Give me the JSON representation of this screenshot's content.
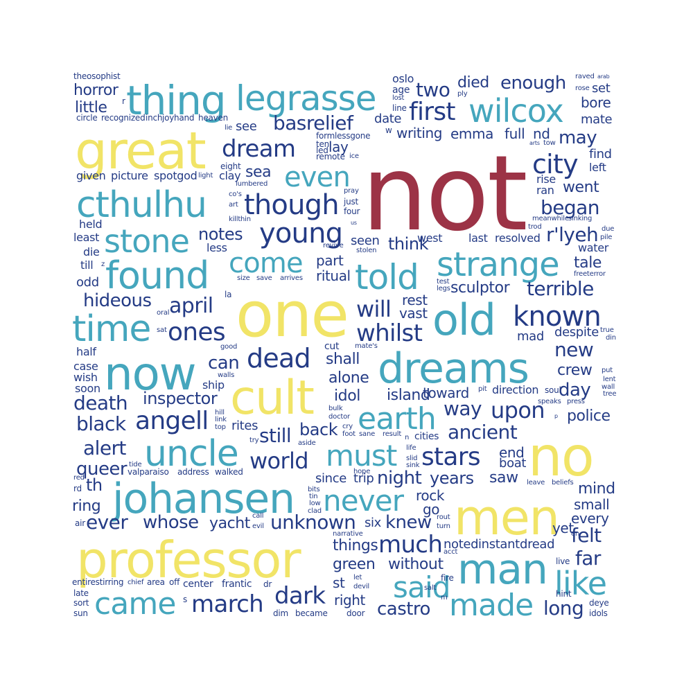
{
  "palette": {
    "red": "#9c3346",
    "yellow": "#f1e467",
    "teal": "#45a6bd",
    "navy": "#243b85"
  },
  "words": [
    {
      "text": "not",
      "color": "red"
    },
    {
      "text": "one",
      "color": "yellow"
    },
    {
      "text": "great",
      "color": "yellow"
    },
    {
      "text": "professor",
      "color": "yellow"
    },
    {
      "text": "men",
      "color": "yellow"
    },
    {
      "text": "no",
      "color": "yellow"
    },
    {
      "text": "cult",
      "color": "yellow"
    },
    {
      "text": "now",
      "color": "teal"
    },
    {
      "text": "old",
      "color": "teal"
    },
    {
      "text": "johansen",
      "color": "teal"
    },
    {
      "text": "dreams",
      "color": "teal"
    },
    {
      "text": "man",
      "color": "teal"
    },
    {
      "text": "thing",
      "color": "teal"
    },
    {
      "text": "legrasse",
      "color": "teal"
    },
    {
      "text": "cthulhu",
      "color": "teal"
    },
    {
      "text": "found",
      "color": "teal"
    },
    {
      "text": "uncle",
      "color": "teal"
    },
    {
      "text": "strange",
      "color": "teal"
    },
    {
      "text": "told",
      "color": "teal"
    },
    {
      "text": "time",
      "color": "teal"
    },
    {
      "text": "wilcox",
      "color": "teal"
    },
    {
      "text": "stone",
      "color": "teal"
    },
    {
      "text": "came",
      "color": "teal"
    },
    {
      "text": "made",
      "color": "teal"
    },
    {
      "text": "earth",
      "color": "teal"
    },
    {
      "text": "must",
      "color": "teal"
    },
    {
      "text": "never",
      "color": "teal"
    },
    {
      "text": "said",
      "color": "teal"
    },
    {
      "text": "like",
      "color": "teal"
    },
    {
      "text": "come",
      "color": "teal"
    },
    {
      "text": "even",
      "color": "teal"
    },
    {
      "text": "known",
      "color": "navy"
    },
    {
      "text": "young",
      "color": "navy"
    },
    {
      "text": "though",
      "color": "navy"
    },
    {
      "text": "dream",
      "color": "navy"
    },
    {
      "text": "city",
      "color": "navy"
    },
    {
      "text": "first",
      "color": "navy"
    },
    {
      "text": "ones",
      "color": "navy"
    },
    {
      "text": "dead",
      "color": "navy"
    },
    {
      "text": "angell",
      "color": "navy"
    },
    {
      "text": "stars",
      "color": "navy"
    },
    {
      "text": "much",
      "color": "navy"
    },
    {
      "text": "whilst",
      "color": "navy"
    },
    {
      "text": "april",
      "color": "navy"
    },
    {
      "text": "will",
      "color": "navy"
    },
    {
      "text": "world",
      "color": "navy"
    },
    {
      "text": "march",
      "color": "navy"
    },
    {
      "text": "dark",
      "color": "navy"
    },
    {
      "text": "upon",
      "color": "navy"
    },
    {
      "text": "alert",
      "color": "navy"
    },
    {
      "text": "black",
      "color": "navy"
    },
    {
      "text": "death",
      "color": "navy"
    },
    {
      "text": "basrelief",
      "color": "navy"
    },
    {
      "text": "two",
      "color": "navy"
    },
    {
      "text": "terrible",
      "color": "navy"
    },
    {
      "text": "began",
      "color": "navy"
    },
    {
      "text": "far",
      "color": "navy"
    },
    {
      "text": "felt",
      "color": "navy"
    },
    {
      "text": "long",
      "color": "navy"
    },
    {
      "text": "r'lyeh",
      "color": "navy"
    },
    {
      "text": "day",
      "color": "navy"
    },
    {
      "text": "new",
      "color": "navy"
    },
    {
      "text": "ancient",
      "color": "navy"
    },
    {
      "text": "hideous",
      "color": "navy"
    },
    {
      "text": "inspector",
      "color": "navy"
    },
    {
      "text": "whose",
      "color": "navy"
    },
    {
      "text": "unknown",
      "color": "navy"
    },
    {
      "text": "ever",
      "color": "navy"
    },
    {
      "text": "queer",
      "color": "navy"
    },
    {
      "text": "ring",
      "color": "navy"
    },
    {
      "text": "th",
      "color": "navy"
    },
    {
      "text": "knew",
      "color": "navy"
    },
    {
      "text": "castro",
      "color": "navy"
    },
    {
      "text": "way",
      "color": "navy"
    },
    {
      "text": "police",
      "color": "navy"
    },
    {
      "text": "tale",
      "color": "navy"
    },
    {
      "text": "may",
      "color": "navy"
    },
    {
      "text": "went",
      "color": "navy"
    },
    {
      "text": "horror",
      "color": "navy"
    },
    {
      "text": "little",
      "color": "navy"
    },
    {
      "text": "died",
      "color": "navy"
    },
    {
      "text": "enough",
      "color": "navy"
    },
    {
      "text": "sculptor",
      "color": "navy"
    },
    {
      "text": "island",
      "color": "navy"
    },
    {
      "text": "yacht",
      "color": "navy"
    },
    {
      "text": "without",
      "color": "navy"
    },
    {
      "text": "green",
      "color": "navy"
    },
    {
      "text": "things",
      "color": "navy"
    },
    {
      "text": "shall",
      "color": "navy"
    },
    {
      "text": "alone",
      "color": "navy"
    },
    {
      "text": "still",
      "color": "navy"
    },
    {
      "text": "back",
      "color": "navy"
    },
    {
      "text": "can",
      "color": "navy"
    },
    {
      "text": "notes",
      "color": "navy"
    },
    {
      "text": "sea",
      "color": "navy"
    },
    {
      "text": "think",
      "color": "navy"
    },
    {
      "text": "seen",
      "color": "navy"
    },
    {
      "text": "part",
      "color": "navy"
    },
    {
      "text": "ritual",
      "color": "navy"
    },
    {
      "text": "idol",
      "color": "navy"
    },
    {
      "text": "night",
      "color": "navy"
    },
    {
      "text": "years",
      "color": "navy"
    },
    {
      "text": "saw",
      "color": "navy"
    },
    {
      "text": "rock",
      "color": "navy"
    },
    {
      "text": "go",
      "color": "navy"
    },
    {
      "text": "mind",
      "color": "navy"
    },
    {
      "text": "small",
      "color": "navy"
    },
    {
      "text": "every",
      "color": "navy"
    },
    {
      "text": "crew",
      "color": "navy"
    },
    {
      "text": "find",
      "color": "navy"
    },
    {
      "text": "left",
      "color": "navy"
    },
    {
      "text": "mad",
      "color": "navy"
    },
    {
      "text": "despite",
      "color": "navy"
    },
    {
      "text": "writing",
      "color": "navy"
    },
    {
      "text": "emma",
      "color": "navy"
    },
    {
      "text": "full",
      "color": "navy"
    },
    {
      "text": "nd",
      "color": "navy"
    },
    {
      "text": "set",
      "color": "navy"
    },
    {
      "text": "bore",
      "color": "navy"
    },
    {
      "text": "mate",
      "color": "navy"
    },
    {
      "text": "date",
      "color": "navy"
    },
    {
      "text": "see",
      "color": "navy"
    },
    {
      "text": "lay",
      "color": "navy"
    },
    {
      "text": "rest",
      "color": "navy"
    },
    {
      "text": "vast",
      "color": "navy"
    },
    {
      "text": "toward",
      "color": "navy"
    },
    {
      "text": "end",
      "color": "navy"
    },
    {
      "text": "boat",
      "color": "navy"
    },
    {
      "text": "since",
      "color": "navy"
    },
    {
      "text": "trip",
      "color": "navy"
    },
    {
      "text": "st",
      "color": "navy"
    },
    {
      "text": "right",
      "color": "navy"
    },
    {
      "text": "six",
      "color": "navy"
    },
    {
      "text": "noted",
      "color": "navy"
    },
    {
      "text": "instant",
      "color": "navy"
    },
    {
      "text": "dread",
      "color": "navy"
    },
    {
      "text": "yet",
      "color": "navy"
    },
    {
      "text": "water",
      "color": "navy"
    },
    {
      "text": "west",
      "color": "navy"
    },
    {
      "text": "last",
      "color": "navy"
    },
    {
      "text": "resolved",
      "color": "navy"
    },
    {
      "text": "direction",
      "color": "navy"
    },
    {
      "text": "soul",
      "color": "navy"
    },
    {
      "text": "cities",
      "color": "navy"
    },
    {
      "text": "held",
      "color": "navy"
    },
    {
      "text": "least",
      "color": "navy"
    },
    {
      "text": "die",
      "color": "navy"
    },
    {
      "text": "till",
      "color": "navy"
    },
    {
      "text": "odd",
      "color": "navy"
    },
    {
      "text": "half",
      "color": "navy"
    },
    {
      "text": "case",
      "color": "navy"
    },
    {
      "text": "wish",
      "color": "navy"
    },
    {
      "text": "soon",
      "color": "navy"
    },
    {
      "text": "ship",
      "color": "navy"
    },
    {
      "text": "rites",
      "color": "navy"
    },
    {
      "text": "less",
      "color": "navy"
    },
    {
      "text": "clay",
      "color": "navy"
    },
    {
      "text": "given",
      "color": "navy"
    },
    {
      "text": "picture",
      "color": "navy"
    },
    {
      "text": "spotgod",
      "color": "navy"
    },
    {
      "text": "cut",
      "color": "navy"
    },
    {
      "text": "rise",
      "color": "navy"
    },
    {
      "text": "ran",
      "color": "navy"
    },
    {
      "text": "oslo",
      "color": "navy"
    },
    {
      "text": "age",
      "color": "navy"
    },
    {
      "text": "lost",
      "color": "navy"
    },
    {
      "text": "line",
      "color": "navy"
    },
    {
      "text": "theosophist",
      "color": "navy"
    },
    {
      "text": "circle",
      "color": "navy"
    },
    {
      "text": "recognized",
      "color": "navy"
    },
    {
      "text": "inch",
      "color": "navy"
    },
    {
      "text": "joyhand",
      "color": "navy"
    },
    {
      "text": "heaven",
      "color": "navy"
    },
    {
      "text": "formlessgone",
      "color": "navy"
    },
    {
      "text": "ten",
      "color": "navy"
    },
    {
      "text": "led",
      "color": "navy"
    },
    {
      "text": "remote",
      "color": "navy"
    },
    {
      "text": "ice",
      "color": "navy"
    },
    {
      "text": "eight",
      "color": "navy"
    },
    {
      "text": "light",
      "color": "navy"
    },
    {
      "text": "lumbered",
      "color": "navy"
    },
    {
      "text": "pray",
      "color": "navy"
    },
    {
      "text": "just",
      "color": "navy"
    },
    {
      "text": "four",
      "color": "navy"
    },
    {
      "text": "art",
      "color": "navy"
    },
    {
      "text": "co's",
      "color": "navy"
    },
    {
      "text": "killthin",
      "color": "navy"
    },
    {
      "text": "us",
      "color": "navy"
    },
    {
      "text": "revive",
      "color": "navy"
    },
    {
      "text": "stolen",
      "color": "navy"
    },
    {
      "text": "size",
      "color": "navy"
    },
    {
      "text": "save",
      "color": "navy"
    },
    {
      "text": "arrives",
      "color": "navy"
    },
    {
      "text": "la",
      "color": "navy"
    },
    {
      "text": "oral",
      "color": "navy"
    },
    {
      "text": "sat",
      "color": "navy"
    },
    {
      "text": "good",
      "color": "navy"
    },
    {
      "text": "walls",
      "color": "navy"
    },
    {
      "text": "hill",
      "color": "navy"
    },
    {
      "text": "link",
      "color": "navy"
    },
    {
      "text": "top",
      "color": "navy"
    },
    {
      "text": "try",
      "color": "navy"
    },
    {
      "text": "mate's",
      "color": "navy"
    },
    {
      "text": "bulk",
      "color": "navy"
    },
    {
      "text": "doctor",
      "color": "navy"
    },
    {
      "text": "cry",
      "color": "navy"
    },
    {
      "text": "foot",
      "color": "navy"
    },
    {
      "text": "sane",
      "color": "navy"
    },
    {
      "text": "result",
      "color": "navy"
    },
    {
      "text": "aside",
      "color": "navy"
    },
    {
      "text": "life",
      "color": "navy"
    },
    {
      "text": "slid",
      "color": "navy"
    },
    {
      "text": "sink",
      "color": "navy"
    },
    {
      "text": "tide",
      "color": "navy"
    },
    {
      "text": "valparaiso",
      "color": "navy"
    },
    {
      "text": "address",
      "color": "navy"
    },
    {
      "text": "walked",
      "color": "navy"
    },
    {
      "text": "hope",
      "color": "navy"
    },
    {
      "text": "bits",
      "color": "navy"
    },
    {
      "text": "tin",
      "color": "navy"
    },
    {
      "text": "low",
      "color": "navy"
    },
    {
      "text": "clad",
      "color": "navy"
    },
    {
      "text": "red",
      "color": "navy"
    },
    {
      "text": "rd",
      "color": "navy"
    },
    {
      "text": "air",
      "color": "navy"
    },
    {
      "text": "call",
      "color": "navy"
    },
    {
      "text": "evil",
      "color": "navy"
    },
    {
      "text": "narrative",
      "color": "navy"
    },
    {
      "text": "rout",
      "color": "navy"
    },
    {
      "text": "turn",
      "color": "navy"
    },
    {
      "text": "acct",
      "color": "navy"
    },
    {
      "text": "en",
      "color": "navy"
    },
    {
      "text": "live",
      "color": "navy"
    },
    {
      "text": "entirestirring",
      "color": "navy"
    },
    {
      "text": "chief",
      "color": "navy"
    },
    {
      "text": "area",
      "color": "navy"
    },
    {
      "text": "off",
      "color": "navy"
    },
    {
      "text": "center",
      "color": "navy"
    },
    {
      "text": "frantic",
      "color": "navy"
    },
    {
      "text": "dr",
      "color": "navy"
    },
    {
      "text": "late",
      "color": "navy"
    },
    {
      "text": "sort",
      "color": "navy"
    },
    {
      "text": "sun",
      "color": "navy"
    },
    {
      "text": "s",
      "color": "navy"
    },
    {
      "text": "dim",
      "color": "navy"
    },
    {
      "text": "became",
      "color": "navy"
    },
    {
      "text": "door",
      "color": "navy"
    },
    {
      "text": "let",
      "color": "navy"
    },
    {
      "text": "devil",
      "color": "navy"
    },
    {
      "text": "fire",
      "color": "navy"
    },
    {
      "text": "salt",
      "color": "navy"
    },
    {
      "text": "m",
      "color": "navy"
    },
    {
      "text": "hint",
      "color": "navy"
    },
    {
      "text": "deye",
      "color": "navy"
    },
    {
      "text": "idols",
      "color": "navy"
    },
    {
      "text": "leave",
      "color": "navy"
    },
    {
      "text": "beliefs",
      "color": "navy"
    },
    {
      "text": "speaks",
      "color": "navy"
    },
    {
      "text": "press",
      "color": "navy"
    },
    {
      "text": "put",
      "color": "navy"
    },
    {
      "text": "lent",
      "color": "navy"
    },
    {
      "text": "wall",
      "color": "navy"
    },
    {
      "text": "tree",
      "color": "navy"
    },
    {
      "text": "true",
      "color": "navy"
    },
    {
      "text": "din",
      "color": "navy"
    },
    {
      "text": "freeterror",
      "color": "navy"
    },
    {
      "text": "meanwhile",
      "color": "navy"
    },
    {
      "text": "sinking",
      "color": "navy"
    },
    {
      "text": "trod",
      "color": "navy"
    },
    {
      "text": "due",
      "color": "navy"
    },
    {
      "text": "pile",
      "color": "navy"
    },
    {
      "text": "raved",
      "color": "navy"
    },
    {
      "text": "arab",
      "color": "navy"
    },
    {
      "text": "rose",
      "color": "navy"
    },
    {
      "text": "arts",
      "color": "navy"
    },
    {
      "text": "tow",
      "color": "navy"
    },
    {
      "text": "ply",
      "color": "navy"
    },
    {
      "text": "pit",
      "color": "navy"
    },
    {
      "text": "test",
      "color": "navy"
    },
    {
      "text": "legs",
      "color": "navy"
    },
    {
      "text": "lie",
      "color": "navy"
    },
    {
      "text": "r",
      "color": "navy"
    },
    {
      "text": "w",
      "color": "navy"
    },
    {
      "text": "z",
      "color": "navy"
    },
    {
      "text": "p",
      "color": "navy"
    },
    {
      "text": "n",
      "color": "navy"
    }
  ]
}
